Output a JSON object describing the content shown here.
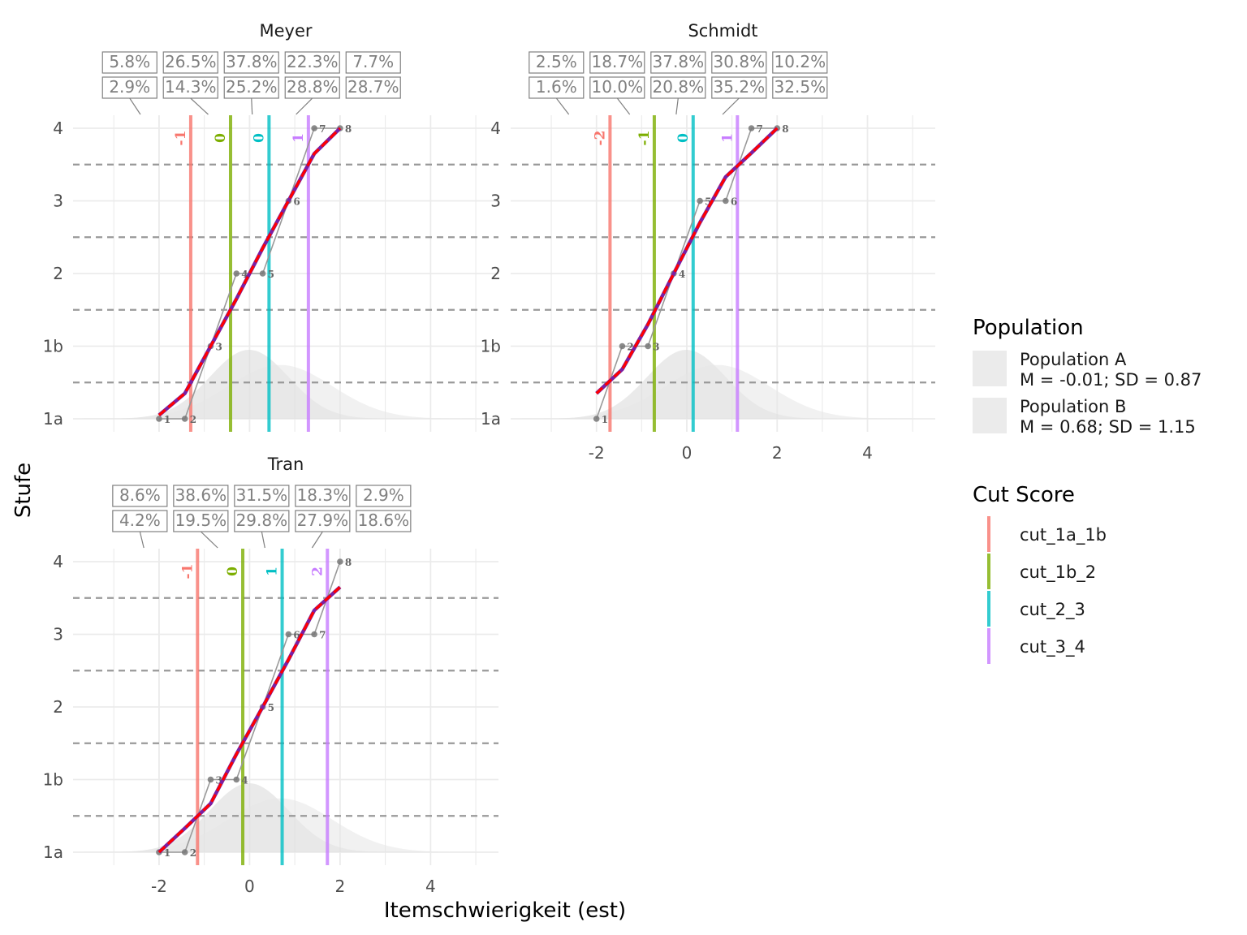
{
  "chart_data": {
    "type": "line",
    "xlabel": "Itemschwierigkeit (est)",
    "ylabel": "Stufe",
    "xlim": [
      -3.9,
      5.5
    ],
    "x_ticks": [
      -2,
      0,
      2,
      4
    ],
    "y_levels": [
      "1a",
      "1b",
      "2",
      "3",
      "4"
    ],
    "level_boundaries": [
      0.5,
      1.5,
      2.5,
      3.5
    ],
    "grid": true,
    "populations": [
      {
        "name": "Population A",
        "stats": "M = -0.01; SD = 0.87",
        "mean": -0.01,
        "sd": 0.87,
        "color": "#d9d9d9"
      },
      {
        "name": "Population B",
        "stats": "M = 0.68; SD = 1.15",
        "mean": 0.68,
        "sd": 1.15,
        "color": "#e6e6e6"
      }
    ],
    "legend": {
      "population_title": "Population",
      "cut_title": "Cut Score",
      "cut_items": [
        {
          "name": "cut_1a_1b",
          "color": "#f8766d"
        },
        {
          "name": "cut_1b_2",
          "color": "#7cae00"
        },
        {
          "name": "cut_2_3",
          "color": "#00bfc4"
        },
        {
          "name": "cut_3_4",
          "color": "#c77cff"
        }
      ]
    },
    "panels": [
      {
        "title": "Meyer",
        "cuts": [
          {
            "x": -1.3,
            "label": "-1"
          },
          {
            "x": -0.42,
            "label": "0"
          },
          {
            "x": 0.43,
            "label": "0"
          },
          {
            "x": 1.3,
            "label": "1"
          }
        ],
        "pct_row_a": [
          "5.8%",
          "26.5%",
          "37.8%",
          "22.3%",
          "7.7%"
        ],
        "pct_row_b": [
          "2.9%",
          "14.3%",
          "25.2%",
          "28.8%",
          "28.7%"
        ],
        "items": [
          {
            "id": "1",
            "x": -2.0,
            "y": 0
          },
          {
            "id": "2",
            "x": -1.43,
            "y": 0
          },
          {
            "id": "3",
            "x": -0.86,
            "y": 1
          },
          {
            "id": "4",
            "x": -0.29,
            "y": 2
          },
          {
            "id": "5",
            "x": 0.29,
            "y": 2
          },
          {
            "id": "6",
            "x": 0.86,
            "y": 3
          },
          {
            "id": "7",
            "x": 1.43,
            "y": 4
          },
          {
            "id": "8",
            "x": 2.0,
            "y": 4
          }
        ],
        "fit": [
          {
            "x": -2.0,
            "y": 0.05
          },
          {
            "x": -1.43,
            "y": 0.35
          },
          {
            "x": -0.86,
            "y": 1.0
          },
          {
            "x": -0.29,
            "y": 1.65
          },
          {
            "x": 0.29,
            "y": 2.35
          },
          {
            "x": 0.86,
            "y": 3.0
          },
          {
            "x": 1.43,
            "y": 3.65
          },
          {
            "x": 2.0,
            "y": 4.0
          }
        ]
      },
      {
        "title": "Schmidt",
        "cuts": [
          {
            "x": -1.7,
            "label": "-2"
          },
          {
            "x": -0.72,
            "label": "-1"
          },
          {
            "x": 0.14,
            "label": "0"
          },
          {
            "x": 1.12,
            "label": "1"
          }
        ],
        "pct_row_a": [
          "2.5%",
          "18.7%",
          "37.8%",
          "30.8%",
          "10.2%"
        ],
        "pct_row_b": [
          "1.6%",
          "10.0%",
          "20.8%",
          "35.2%",
          "32.5%"
        ],
        "items": [
          {
            "id": "1",
            "x": -2.0,
            "y": 0
          },
          {
            "id": "2",
            "x": -1.43,
            "y": 1
          },
          {
            "id": "3",
            "x": -0.86,
            "y": 1
          },
          {
            "id": "4",
            "x": -0.29,
            "y": 2
          },
          {
            "id": "5",
            "x": 0.29,
            "y": 3
          },
          {
            "id": "6",
            "x": 0.86,
            "y": 3
          },
          {
            "id": "7",
            "x": 1.43,
            "y": 4
          },
          {
            "id": "8",
            "x": 2.0,
            "y": 4
          }
        ],
        "fit": [
          {
            "x": -2.0,
            "y": 0.35
          },
          {
            "x": -1.43,
            "y": 0.68
          },
          {
            "x": -0.86,
            "y": 1.3
          },
          {
            "x": -0.29,
            "y": 2.0
          },
          {
            "x": 0.29,
            "y": 2.7
          },
          {
            "x": 0.86,
            "y": 3.33
          },
          {
            "x": 1.43,
            "y": 3.66
          },
          {
            "x": 2.0,
            "y": 4.0
          }
        ]
      },
      {
        "title": "Tran",
        "cuts": [
          {
            "x": -1.15,
            "label": "-1"
          },
          {
            "x": -0.15,
            "label": "0"
          },
          {
            "x": 0.72,
            "label": "1"
          },
          {
            "x": 1.72,
            "label": "2"
          }
        ],
        "pct_row_a": [
          "8.6%",
          "38.6%",
          "31.5%",
          "18.3%",
          "2.9%"
        ],
        "pct_row_b": [
          "4.2%",
          "19.5%",
          "29.8%",
          "27.9%",
          "18.6%"
        ],
        "items": [
          {
            "id": "1",
            "x": -2.0,
            "y": 0
          },
          {
            "id": "2",
            "x": -1.43,
            "y": 0
          },
          {
            "id": "3",
            "x": -0.86,
            "y": 1
          },
          {
            "id": "4",
            "x": -0.29,
            "y": 1
          },
          {
            "id": "5",
            "x": 0.29,
            "y": 2
          },
          {
            "id": "6",
            "x": 0.86,
            "y": 3
          },
          {
            "id": "7",
            "x": 1.43,
            "y": 3
          },
          {
            "id": "8",
            "x": 2.0,
            "y": 4
          }
        ],
        "fit": [
          {
            "x": -2.0,
            "y": 0.0
          },
          {
            "x": -1.43,
            "y": 0.33
          },
          {
            "x": -0.86,
            "y": 0.67
          },
          {
            "x": -0.29,
            "y": 1.35
          },
          {
            "x": 0.29,
            "y": 2.0
          },
          {
            "x": 0.86,
            "y": 2.65
          },
          {
            "x": 1.43,
            "y": 3.33
          },
          {
            "x": 2.0,
            "y": 3.65
          }
        ]
      }
    ]
  }
}
